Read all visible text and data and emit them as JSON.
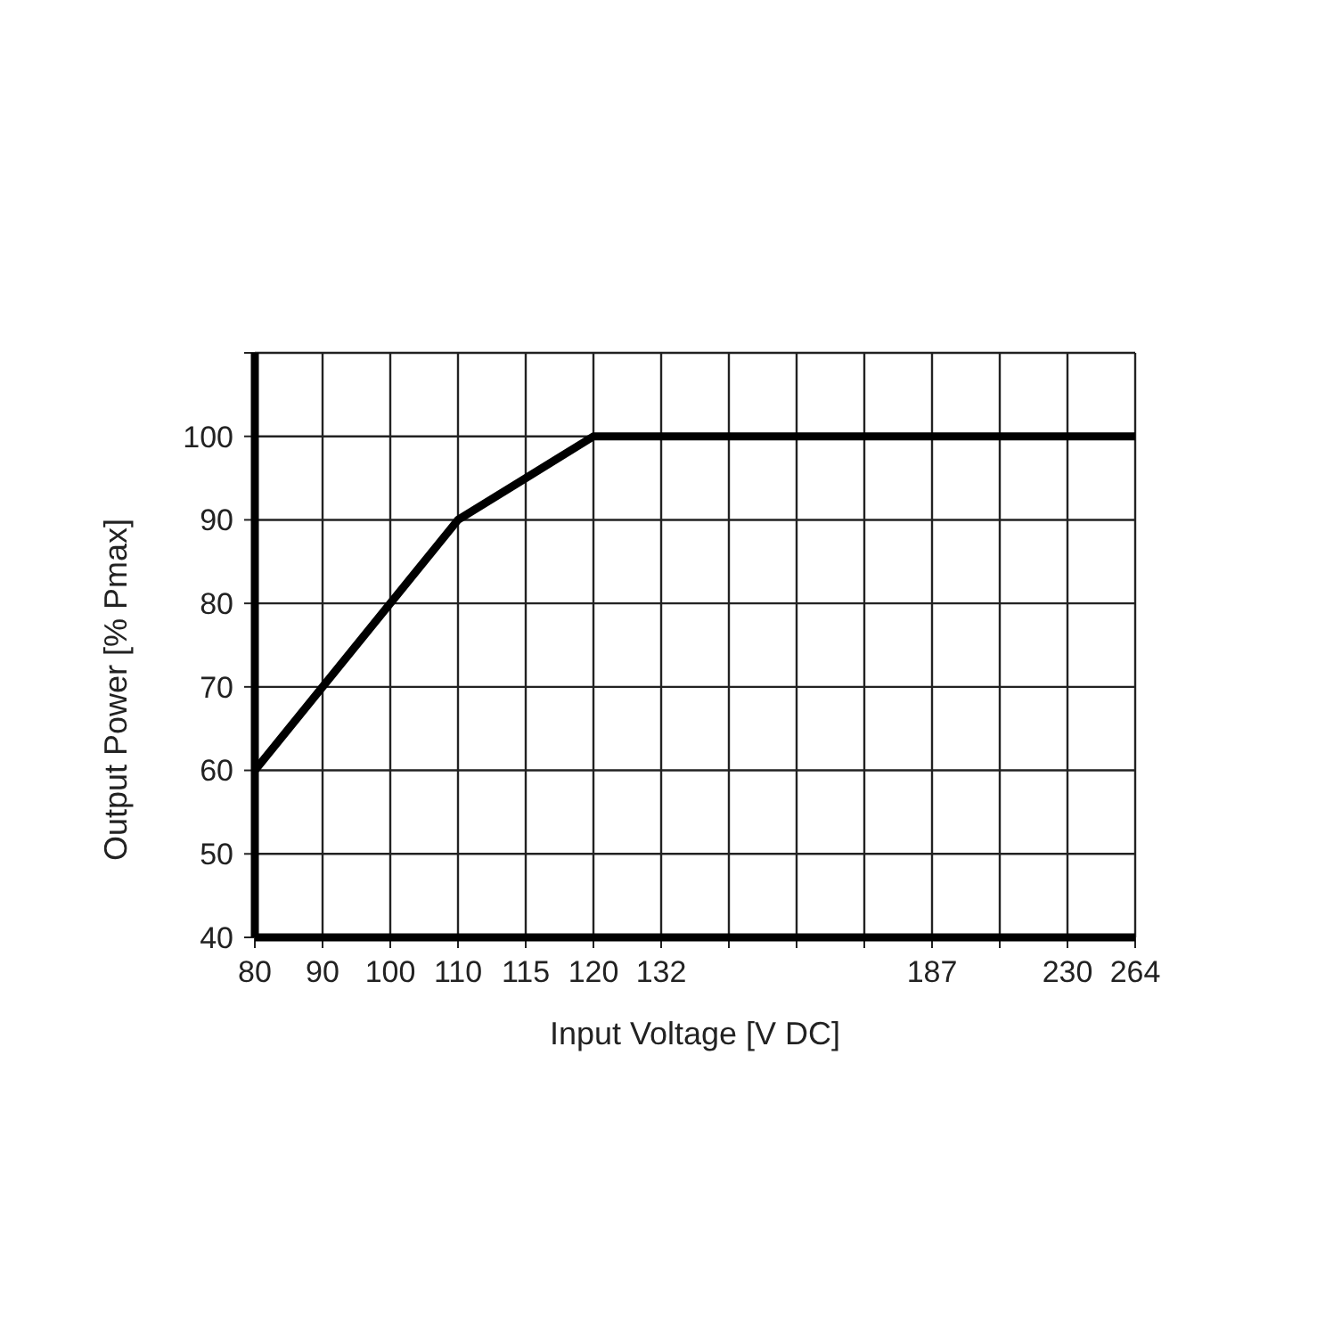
{
  "chart_data": {
    "type": "line",
    "xlabel": "Input Voltage [V DC]",
    "ylabel": "Output Power [% Pmax]",
    "categories": [
      "80",
      "90",
      "100",
      "110",
      "115",
      "120",
      "132",
      null,
      null,
      null,
      "187",
      null,
      "230",
      "264"
    ],
    "values": [
      60,
      70,
      80,
      90,
      95,
      100,
      100,
      100,
      100,
      100,
      100,
      100,
      100,
      100
    ],
    "color": "#000000",
    "ylim": [
      40,
      110
    ],
    "yticks": [
      40,
      50,
      60,
      70,
      80,
      90,
      100,
      {
        "value": 110,
        "label": null
      }
    ],
    "grid": true,
    "marker": "none",
    "line_style": "solid"
  }
}
